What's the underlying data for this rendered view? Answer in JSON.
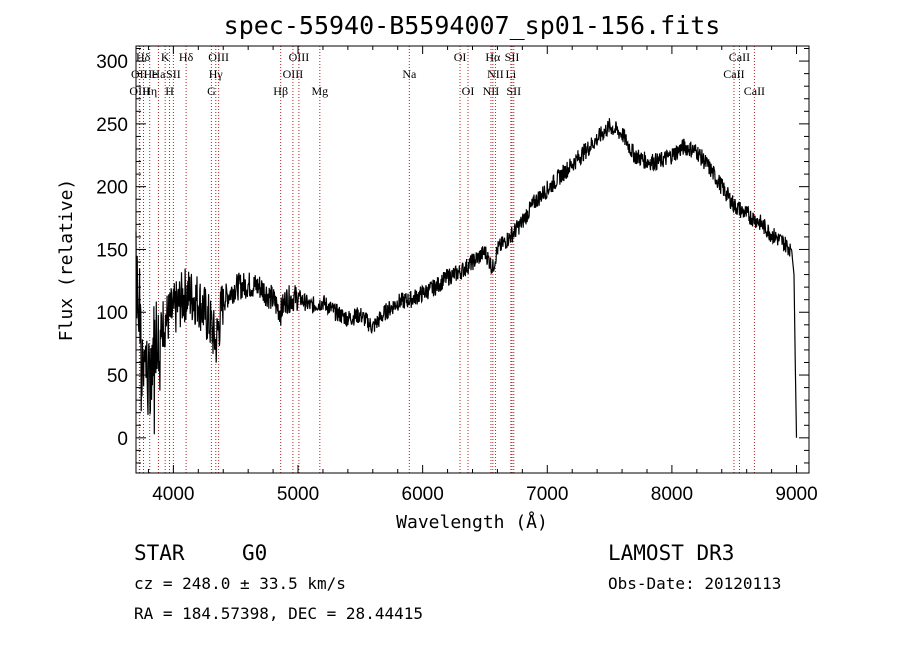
{
  "chart_data": {
    "type": "line",
    "title": "spec-55940-B5594007_sp01-156.fits",
    "xlabel": "Wavelength (Å)",
    "ylabel": "Flux (relative)",
    "xlim": [
      3700,
      9100
    ],
    "ylim": [
      -28,
      312
    ],
    "xticks": [
      4000,
      5000,
      6000,
      7000,
      8000,
      9000
    ],
    "yticks": [
      0,
      50,
      100,
      150,
      200,
      250,
      300
    ],
    "spectrum_anchors": [
      [
        3700,
        165
      ],
      [
        3720,
        110
      ],
      [
        3750,
        90
      ],
      [
        3780,
        60
      ],
      [
        3800,
        40
      ],
      [
        3830,
        70
      ],
      [
        3860,
        85
      ],
      [
        3900,
        90
      ],
      [
        3950,
        95
      ],
      [
        4000,
        100
      ],
      [
        4100,
        115
      ],
      [
        4200,
        110
      ],
      [
        4300,
        90
      ],
      [
        4340,
        75
      ],
      [
        4400,
        110
      ],
      [
        4500,
        120
      ],
      [
        4600,
        122
      ],
      [
        4700,
        120
      ],
      [
        4800,
        110
      ],
      [
        4860,
        100
      ],
      [
        4900,
        110
      ],
      [
        5000,
        112
      ],
      [
        5100,
        105
      ],
      [
        5200,
        108
      ],
      [
        5300,
        100
      ],
      [
        5400,
        95
      ],
      [
        5500,
        98
      ],
      [
        5600,
        88
      ],
      [
        5700,
        100
      ],
      [
        5800,
        108
      ],
      [
        5900,
        110
      ],
      [
        6000,
        115
      ],
      [
        6100,
        120
      ],
      [
        6200,
        128
      ],
      [
        6300,
        132
      ],
      [
        6400,
        140
      ],
      [
        6500,
        148
      ],
      [
        6563,
        135
      ],
      [
        6600,
        150
      ],
      [
        6700,
        160
      ],
      [
        6800,
        172
      ],
      [
        6900,
        188
      ],
      [
        7000,
        198
      ],
      [
        7100,
        208
      ],
      [
        7200,
        218
      ],
      [
        7300,
        228
      ],
      [
        7400,
        238
      ],
      [
        7500,
        248
      ],
      [
        7600,
        242
      ],
      [
        7700,
        225
      ],
      [
        7800,
        220
      ],
      [
        7900,
        220
      ],
      [
        8000,
        225
      ],
      [
        8100,
        232
      ],
      [
        8200,
        228
      ],
      [
        8300,
        215
      ],
      [
        8400,
        200
      ],
      [
        8500,
        185
      ],
      [
        8600,
        178
      ],
      [
        8700,
        172
      ],
      [
        8800,
        162
      ],
      [
        8900,
        155
      ],
      [
        8960,
        150
      ],
      [
        8980,
        130
      ],
      [
        8990,
        60
      ],
      [
        9000,
        0
      ]
    ],
    "lines": [
      {
        "label": "Hδ",
        "wl": 3700,
        "row": 1,
        "align": "start"
      },
      {
        "label": "OII",
        "wl": 3727,
        "row": 2,
        "align": "middle"
      },
      {
        "label": "OIII",
        "wl": 3730,
        "row": 3,
        "align": "middle"
      },
      {
        "label": "He",
        "wl": 3760,
        "row": 2,
        "align": "start"
      },
      {
        "label": "Hη",
        "wl": 3810,
        "row": 3,
        "align": "middle"
      },
      {
        "label": "K",
        "wl": 3934,
        "row": 1,
        "align": "middle"
      },
      {
        "label": "Ha",
        "wl": 3880,
        "row": 2,
        "align": "middle"
      },
      {
        "label": "SII",
        "wl": 4000,
        "row": 2,
        "align": "middle"
      },
      {
        "label": "H",
        "wl": 3969,
        "row": 3,
        "align": "middle"
      },
      {
        "label": "Hδ",
        "wl": 4102,
        "row": 1,
        "align": "middle"
      },
      {
        "label": "OIII",
        "wl": 4363,
        "row": 1,
        "align": "middle"
      },
      {
        "label": "Hγ",
        "wl": 4340,
        "row": 2,
        "align": "middle"
      },
      {
        "label": "G",
        "wl": 4305,
        "row": 3,
        "align": "middle"
      },
      {
        "label": "Hβ",
        "wl": 4861,
        "row": 3,
        "align": "middle"
      },
      {
        "label": "OIII",
        "wl": 5007,
        "row": 1,
        "align": "middle"
      },
      {
        "label": "OIII",
        "wl": 4959,
        "row": 2,
        "align": "middle"
      },
      {
        "label": "Mg",
        "wl": 5175,
        "row": 3,
        "align": "middle"
      },
      {
        "label": "Na",
        "wl": 5893,
        "row": 2,
        "align": "middle"
      },
      {
        "label": "OI",
        "wl": 6300,
        "row": 1,
        "align": "middle"
      },
      {
        "label": "OI",
        "wl": 6364,
        "row": 3,
        "align": "middle"
      },
      {
        "label": "Hα",
        "wl": 6563,
        "row": 1,
        "align": "middle"
      },
      {
        "label": "SII",
        "wl": 6717,
        "row": 1,
        "align": "middle"
      },
      {
        "label": "NII",
        "wl": 6584,
        "row": 2,
        "align": "middle"
      },
      {
        "label": "Li",
        "wl": 6708,
        "row": 2,
        "align": "middle"
      },
      {
        "label": "NII",
        "wl": 6548,
        "row": 3,
        "align": "middle"
      },
      {
        "label": "SII",
        "wl": 6731,
        "row": 3,
        "align": "middle"
      },
      {
        "label": "CaII",
        "wl": 8542,
        "row": 1,
        "align": "middle"
      },
      {
        "label": "CaII",
        "wl": 8498,
        "row": 2,
        "align": "middle"
      },
      {
        "label": "CaII",
        "wl": 8662,
        "row": 3,
        "align": "middle"
      }
    ],
    "line_color": "#000000",
    "marker_color": "#b22222"
  },
  "info": {
    "class": "STAR",
    "subclass": "G0",
    "survey": "LAMOST DR3",
    "cz": "cz = 248.0 ± 33.5 km/s",
    "obs_date": "Obs-Date: 20120113",
    "coords": "RA = 184.57398, DEC =  28.44415"
  }
}
